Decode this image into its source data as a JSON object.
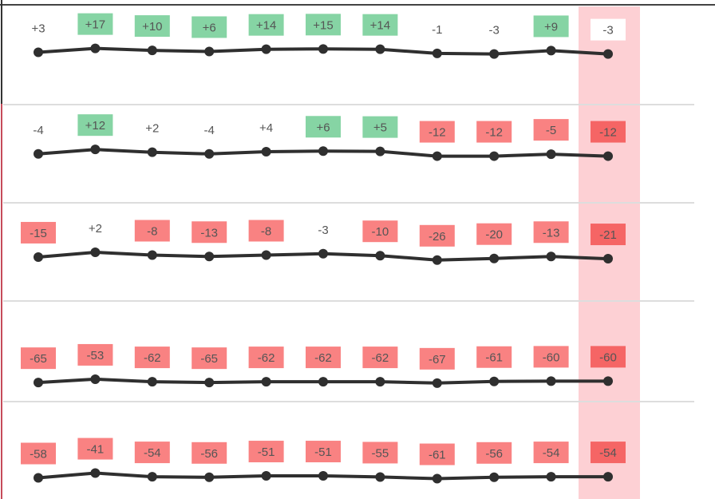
{
  "colors": {
    "positive_box": "#86d4a4",
    "negative_box": "#f98282",
    "negative_box_current": "#f56565",
    "neutral_box": "#ffffff",
    "highlight_column": "#fdd0d4",
    "line": "#2f2f2f",
    "label_text": "#555555",
    "separator": "#dddddd",
    "left_accent": "#c64b5a"
  },
  "chart_data": {
    "type": "line",
    "title": "",
    "highlighted_point_index": 10,
    "rows": [
      {
        "values": [
          3,
          17,
          10,
          6,
          14,
          15,
          14,
          -1,
          -3,
          9,
          -3
        ],
        "labels": [
          "+3",
          "+17",
          "+10",
          "+6",
          "+14",
          "+15",
          "+14",
          "-1",
          "-3",
          "+9",
          "-3"
        ],
        "boxed": [
          false,
          true,
          true,
          true,
          true,
          true,
          true,
          false,
          false,
          true,
          true
        ]
      },
      {
        "values": [
          -4,
          12,
          2,
          -4,
          4,
          6,
          5,
          -12,
          -12,
          -5,
          -12
        ],
        "labels": [
          "-4",
          "+12",
          "+2",
          "-4",
          "+4",
          "+6",
          "+5",
          "-12",
          "-12",
          "-5",
          "-12"
        ],
        "boxed": [
          false,
          true,
          false,
          false,
          false,
          true,
          true,
          true,
          true,
          true,
          true
        ]
      },
      {
        "values": [
          -15,
          2,
          -8,
          -13,
          -8,
          -3,
          -10,
          -26,
          -20,
          -13,
          -21
        ],
        "labels": [
          "-15",
          "+2",
          "-8",
          "-13",
          "-8",
          "-3",
          "-10",
          "-26",
          "-20",
          "-13",
          "-21"
        ],
        "boxed": [
          true,
          false,
          true,
          true,
          true,
          false,
          true,
          true,
          true,
          true,
          true
        ]
      },
      {
        "values": [
          -65,
          -53,
          -62,
          -65,
          -62,
          -62,
          -62,
          -67,
          -61,
          -60,
          -60
        ],
        "labels": [
          "-65",
          "-53",
          "-62",
          "-65",
          "-62",
          "-62",
          "-62",
          "-67",
          "-61",
          "-60",
          "-60"
        ],
        "boxed": [
          true,
          true,
          true,
          true,
          true,
          true,
          true,
          true,
          true,
          true,
          true
        ]
      },
      {
        "values": [
          -58,
          -41,
          -54,
          -56,
          -51,
          -51,
          -55,
          -61,
          -56,
          -54,
          -54
        ],
        "labels": [
          "-58",
          "-41",
          "-54",
          "-56",
          "-51",
          "-51",
          "-55",
          "-61",
          "-56",
          "-54",
          "-54"
        ],
        "boxed": [
          true,
          true,
          true,
          true,
          true,
          true,
          true,
          true,
          true,
          true,
          true
        ]
      }
    ]
  }
}
